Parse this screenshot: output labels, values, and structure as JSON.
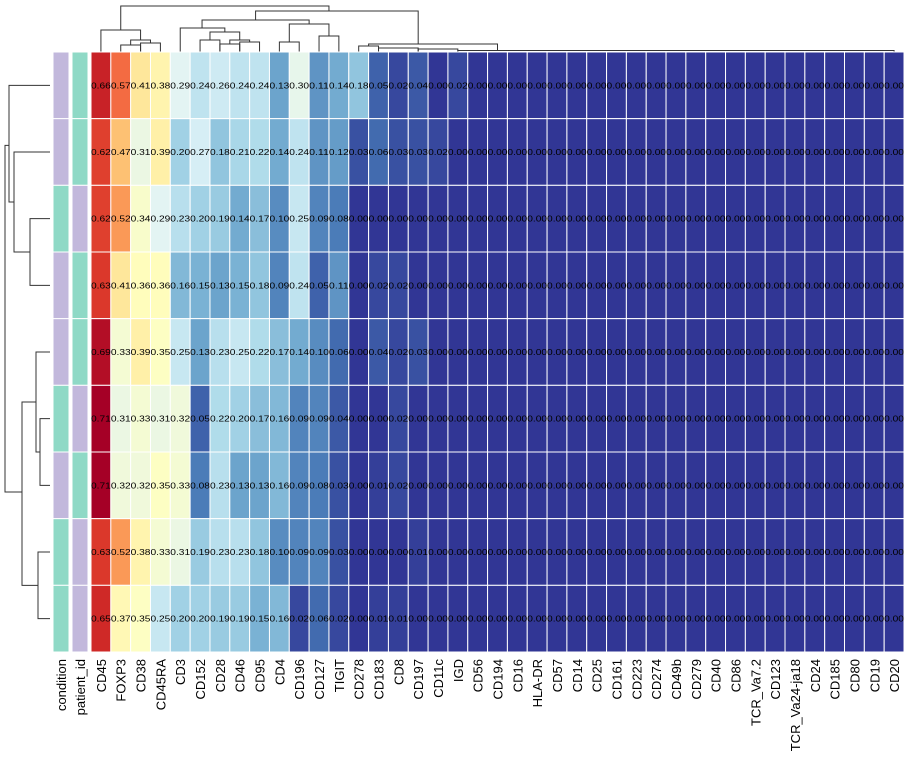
{
  "chart_data": {
    "type": "heatmap",
    "title": "",
    "annotation_labels": [
      "condition",
      "patient_id"
    ],
    "annotation_colors": {
      "a": "#8fd9c6",
      "b": "#c2b8dc"
    },
    "annotations": [
      {
        "condition": "b",
        "patient_id": "a"
      },
      {
        "condition": "b",
        "patient_id": "a"
      },
      {
        "condition": "a",
        "patient_id": "b"
      },
      {
        "condition": "b",
        "patient_id": "a"
      },
      {
        "condition": "b",
        "patient_id": "a"
      },
      {
        "condition": "a",
        "patient_id": "b"
      },
      {
        "condition": "b",
        "patient_id": "a"
      },
      {
        "condition": "a",
        "patient_id": "b"
      },
      {
        "condition": "a",
        "patient_id": "b"
      }
    ],
    "columns": [
      "CD45",
      "FOXP3",
      "CD38",
      "CD45RA",
      "CD3",
      "CD152",
      "CD28",
      "CD46",
      "CD95",
      "CD4",
      "CD196",
      "CD127",
      "TIGIT",
      "CD278",
      "CD183",
      "CD8",
      "CD197",
      "CD11c",
      "IGD",
      "CD56",
      "CD194",
      "CD16",
      "HLA-DR",
      "CD57",
      "CD14",
      "CD25",
      "CD161",
      "CD223",
      "CD274",
      "CD49b",
      "CD279",
      "CD40",
      "CD86",
      "TCR_Va7.2",
      "CD123",
      "TCR_Va24-ja18",
      "CD24",
      "CD185",
      "CD80",
      "CD19",
      "CD20"
    ],
    "values": [
      [
        0.66,
        0.57,
        0.41,
        0.38,
        0.29,
        0.24,
        0.26,
        0.24,
        0.24,
        0.13,
        0.3,
        0.11,
        0.14,
        0.18,
        0.05,
        0.02,
        0.04,
        0.0,
        0.02,
        0.0,
        0.0,
        0.0,
        0.0,
        0.0,
        0.0,
        0.0,
        0.0,
        0.0,
        0.0,
        0.0,
        0.0,
        0.0,
        0.0,
        0.0,
        0.0,
        0.0,
        0.0,
        0.0,
        0.0,
        0.0,
        0.0
      ],
      [
        0.62,
        0.47,
        0.31,
        0.39,
        0.2,
        0.27,
        0.18,
        0.21,
        0.22,
        0.14,
        0.24,
        0.11,
        0.12,
        0.03,
        0.06,
        0.03,
        0.03,
        0.02,
        0.0,
        0.0,
        0.0,
        0.0,
        0.0,
        0.0,
        0.0,
        0.0,
        0.0,
        0.0,
        0.0,
        0.0,
        0.0,
        0.0,
        0.0,
        0.0,
        0.0,
        0.0,
        0.0,
        0.0,
        0.0,
        0.0,
        0.0
      ],
      [
        0.62,
        0.52,
        0.34,
        0.29,
        0.23,
        0.2,
        0.19,
        0.14,
        0.17,
        0.1,
        0.25,
        0.09,
        0.08,
        0.0,
        0.0,
        0.0,
        0.0,
        0.0,
        0.0,
        0.0,
        0.0,
        0.0,
        0.0,
        0.0,
        0.0,
        0.0,
        0.0,
        0.0,
        0.0,
        0.0,
        0.0,
        0.0,
        0.0,
        0.0,
        0.0,
        0.0,
        0.0,
        0.0,
        0.0,
        0.0,
        0.0
      ],
      [
        0.63,
        0.41,
        0.36,
        0.36,
        0.16,
        0.15,
        0.13,
        0.15,
        0.18,
        0.09,
        0.24,
        0.05,
        0.11,
        0.0,
        0.02,
        0.02,
        0.0,
        0.0,
        0.0,
        0.0,
        0.0,
        0.0,
        0.0,
        0.0,
        0.0,
        0.0,
        0.0,
        0.0,
        0.0,
        0.0,
        0.0,
        0.0,
        0.0,
        0.0,
        0.0,
        0.0,
        0.0,
        0.0,
        0.0,
        0.0,
        0.0
      ],
      [
        0.69,
        0.33,
        0.39,
        0.35,
        0.25,
        0.13,
        0.23,
        0.25,
        0.22,
        0.17,
        0.14,
        0.1,
        0.06,
        0.0,
        0.04,
        0.02,
        0.03,
        0.0,
        0.0,
        0.0,
        0.0,
        0.0,
        0.0,
        0.0,
        0.0,
        0.0,
        0.0,
        0.0,
        0.0,
        0.0,
        0.0,
        0.0,
        0.0,
        0.0,
        0.0,
        0.0,
        0.0,
        0.0,
        0.0,
        0.0,
        0.0
      ],
      [
        0.71,
        0.31,
        0.33,
        0.31,
        0.32,
        0.05,
        0.22,
        0.2,
        0.17,
        0.16,
        0.09,
        0.09,
        0.04,
        0.0,
        0.0,
        0.02,
        0.0,
        0.0,
        0.0,
        0.0,
        0.0,
        0.0,
        0.0,
        0.0,
        0.0,
        0.0,
        0.0,
        0.0,
        0.0,
        0.0,
        0.0,
        0.0,
        0.0,
        0.0,
        0.0,
        0.0,
        0.0,
        0.0,
        0.0,
        0.0,
        0.0
      ],
      [
        0.71,
        0.32,
        0.32,
        0.35,
        0.33,
        0.08,
        0.23,
        0.13,
        0.13,
        0.16,
        0.09,
        0.08,
        0.03,
        0.0,
        0.01,
        0.02,
        0.0,
        0.0,
        0.0,
        0.0,
        0.0,
        0.0,
        0.0,
        0.0,
        0.0,
        0.0,
        0.0,
        0.0,
        0.0,
        0.0,
        0.0,
        0.0,
        0.0,
        0.0,
        0.0,
        0.0,
        0.0,
        0.0,
        0.0,
        0.0,
        0.0
      ],
      [
        0.63,
        0.52,
        0.38,
        0.33,
        0.31,
        0.19,
        0.23,
        0.23,
        0.18,
        0.1,
        0.09,
        0.09,
        0.03,
        0.0,
        0.0,
        0.0,
        0.01,
        0.0,
        0.0,
        0.0,
        0.0,
        0.0,
        0.0,
        0.0,
        0.0,
        0.0,
        0.0,
        0.0,
        0.0,
        0.0,
        0.0,
        0.0,
        0.0,
        0.0,
        0.0,
        0.0,
        0.0,
        0.0,
        0.0,
        0.0,
        0.0
      ],
      [
        0.65,
        0.37,
        0.35,
        0.25,
        0.2,
        0.2,
        0.19,
        0.19,
        0.15,
        0.16,
        0.02,
        0.06,
        0.02,
        0.0,
        0.01,
        0.01,
        0.0,
        0.0,
        0.0,
        0.0,
        0.0,
        0.0,
        0.0,
        0.0,
        0.0,
        0.0,
        0.0,
        0.0,
        0.0,
        0.0,
        0.0,
        0.0,
        0.0,
        0.0,
        0.0,
        0.0,
        0.0,
        0.0,
        0.0,
        0.0,
        0.0
      ]
    ],
    "value_format": "0.00",
    "color_scale": {
      "low": "#313695",
      "high": "#a50026",
      "palette": "RdYlBu_r",
      "vmin": 0.0,
      "vmax": 0.71
    },
    "row_dendrogram": true,
    "column_dendrogram": true,
    "grid": false,
    "legend": "none"
  }
}
